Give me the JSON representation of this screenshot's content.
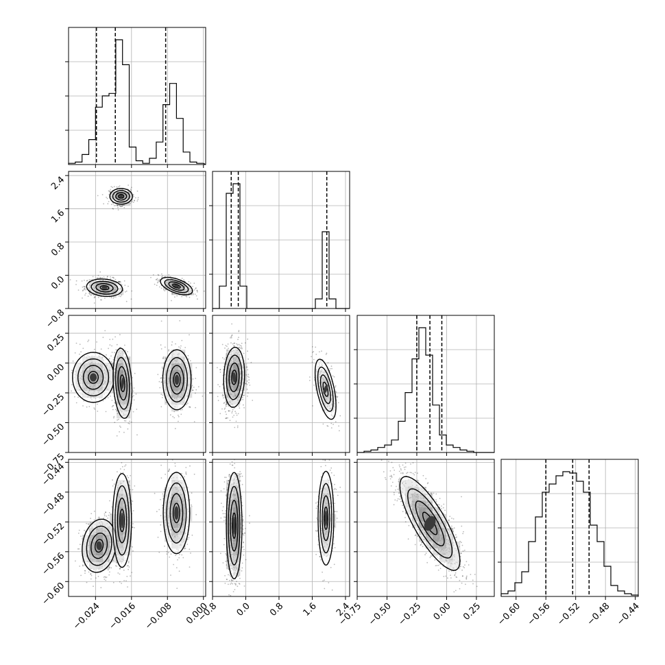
{
  "chart_data": {
    "type": "scatter",
    "subtype": "corner-plot",
    "title": "",
    "grid": true,
    "bins": 20,
    "variables": [
      {
        "range": [
          -0.03,
          0.0005
        ],
        "ticks": [
          -0.024,
          -0.016,
          -0.008,
          0.0
        ],
        "tick_labels": [
          "−0.024",
          "−0.016",
          "−0.008",
          "0.000"
        ],
        "quantiles": [
          -0.0238,
          -0.0196,
          -0.0084
        ],
        "hist_edges_start": -0.03,
        "hist_step": 0.0015,
        "hist_counts": [
          1,
          2,
          8,
          20,
          46,
          55,
          57,
          100,
          80,
          14,
          3,
          1,
          5,
          18,
          48,
          65,
          37,
          10,
          2,
          1
        ]
      },
      {
        "range": [
          -0.8,
          2.5
        ],
        "ticks": [
          -0.8,
          0.0,
          0.8,
          1.6,
          2.4
        ],
        "tick_labels": [
          "−0.8",
          "0.0",
          "0.8",
          "1.6",
          "2.4"
        ],
        "quantiles": [
          -0.35,
          -0.18,
          1.95
        ],
        "hist_edges_start": -0.8,
        "hist_step": 0.165,
        "hist_counts": [
          0,
          14,
          72,
          78,
          14,
          0,
          0,
          0,
          0,
          0,
          0,
          0,
          0,
          0,
          0,
          6,
          48,
          6,
          0,
          0
        ]
      },
      {
        "range": [
          -0.75,
          0.4
        ],
        "ticks": [
          -0.75,
          -0.5,
          -0.25,
          0.0,
          0.25
        ],
        "tick_labels": [
          "−0.75",
          "−0.50",
          "−0.25",
          "0.00",
          "0.25"
        ],
        "quantiles": [
          -0.25,
          -0.14,
          -0.04
        ],
        "hist_edges_start": -0.75,
        "hist_step": 0.0575,
        "hist_counts": [
          0,
          1,
          2,
          4,
          6,
          10,
          25,
          48,
          75,
          100,
          78,
          38,
          14,
          6,
          4,
          2,
          1,
          0,
          0,
          0
        ]
      },
      {
        "range": [
          -0.62,
          -0.436
        ],
        "ticks": [
          -0.6,
          -0.56,
          -0.52,
          -0.48,
          -0.44
        ],
        "tick_labels": [
          "−0.60",
          "−0.56",
          "−0.52",
          "−0.48",
          "−0.44"
        ],
        "quantiles": [
          -0.56,
          -0.524,
          -0.502
        ],
        "hist_edges_start": -0.62,
        "hist_step": 0.0092,
        "hist_counts": [
          2,
          4,
          10,
          18,
          40,
          58,
          76,
          82,
          88,
          91,
          90,
          84,
          76,
          52,
          40,
          22,
          8,
          4,
          2,
          1
        ]
      }
    ],
    "pairs": {
      "1-0": {
        "blobs": [
          {
            "cx": -0.022,
            "cy": -0.3,
            "sx": 0.0019,
            "sy": 0.1,
            "rho": -0.15,
            "n": 500
          },
          {
            "cx": -0.006,
            "cy": -0.26,
            "sx": 0.0017,
            "sy": 0.1,
            "rho": -0.55,
            "n": 420
          },
          {
            "cx": -0.0183,
            "cy": 1.9,
            "sx": 0.0012,
            "sy": 0.09,
            "rho": 0.0,
            "n": 320
          }
        ]
      },
      "2-0": {
        "blobs": [
          {
            "cx": -0.0245,
            "cy": -0.12,
            "sx": 0.0022,
            "sy": 0.1,
            "rho": 0.0,
            "n": 380
          },
          {
            "cx": -0.018,
            "cy": -0.17,
            "sx": 0.001,
            "sy": 0.14,
            "rho": -0.2,
            "n": 380
          },
          {
            "cx": -0.0059,
            "cy": -0.14,
            "sx": 0.0015,
            "sy": 0.12,
            "rho": 0.0,
            "n": 420
          }
        ]
      },
      "2-1": {
        "blobs": [
          {
            "cx": -0.28,
            "cy": -0.12,
            "sx": 0.12,
            "sy": 0.12,
            "rho": 0.1,
            "n": 760
          },
          {
            "cx": 1.92,
            "cy": -0.22,
            "sx": 0.12,
            "sy": 0.12,
            "rho": -0.55,
            "n": 320
          }
        ]
      },
      "3-0": {
        "blobs": [
          {
            "cx": -0.0232,
            "cy": -0.552,
            "sx": 0.0018,
            "sy": 0.017,
            "rho": 0.15,
            "n": 420
          },
          {
            "cx": -0.0181,
            "cy": -0.518,
            "sx": 0.001,
            "sy": 0.03,
            "rho": 0.0,
            "n": 360
          },
          {
            "cx": -0.006,
            "cy": -0.508,
            "sx": 0.0014,
            "sy": 0.026,
            "rho": 0.0,
            "n": 420
          }
        ]
      },
      "3-1": {
        "blobs": [
          {
            "cx": -0.28,
            "cy": -0.525,
            "sx": 0.09,
            "sy": 0.034,
            "rho": 0.0,
            "n": 760
          },
          {
            "cx": 1.93,
            "cy": -0.515,
            "sx": 0.09,
            "sy": 0.03,
            "rho": 0.0,
            "n": 320
          }
        ]
      },
      "3-2": {
        "blobs": [
          {
            "cx": -0.14,
            "cy": -0.522,
            "sx": 0.12,
            "sy": 0.03,
            "rho": -0.8,
            "n": 1080
          }
        ]
      }
    }
  }
}
